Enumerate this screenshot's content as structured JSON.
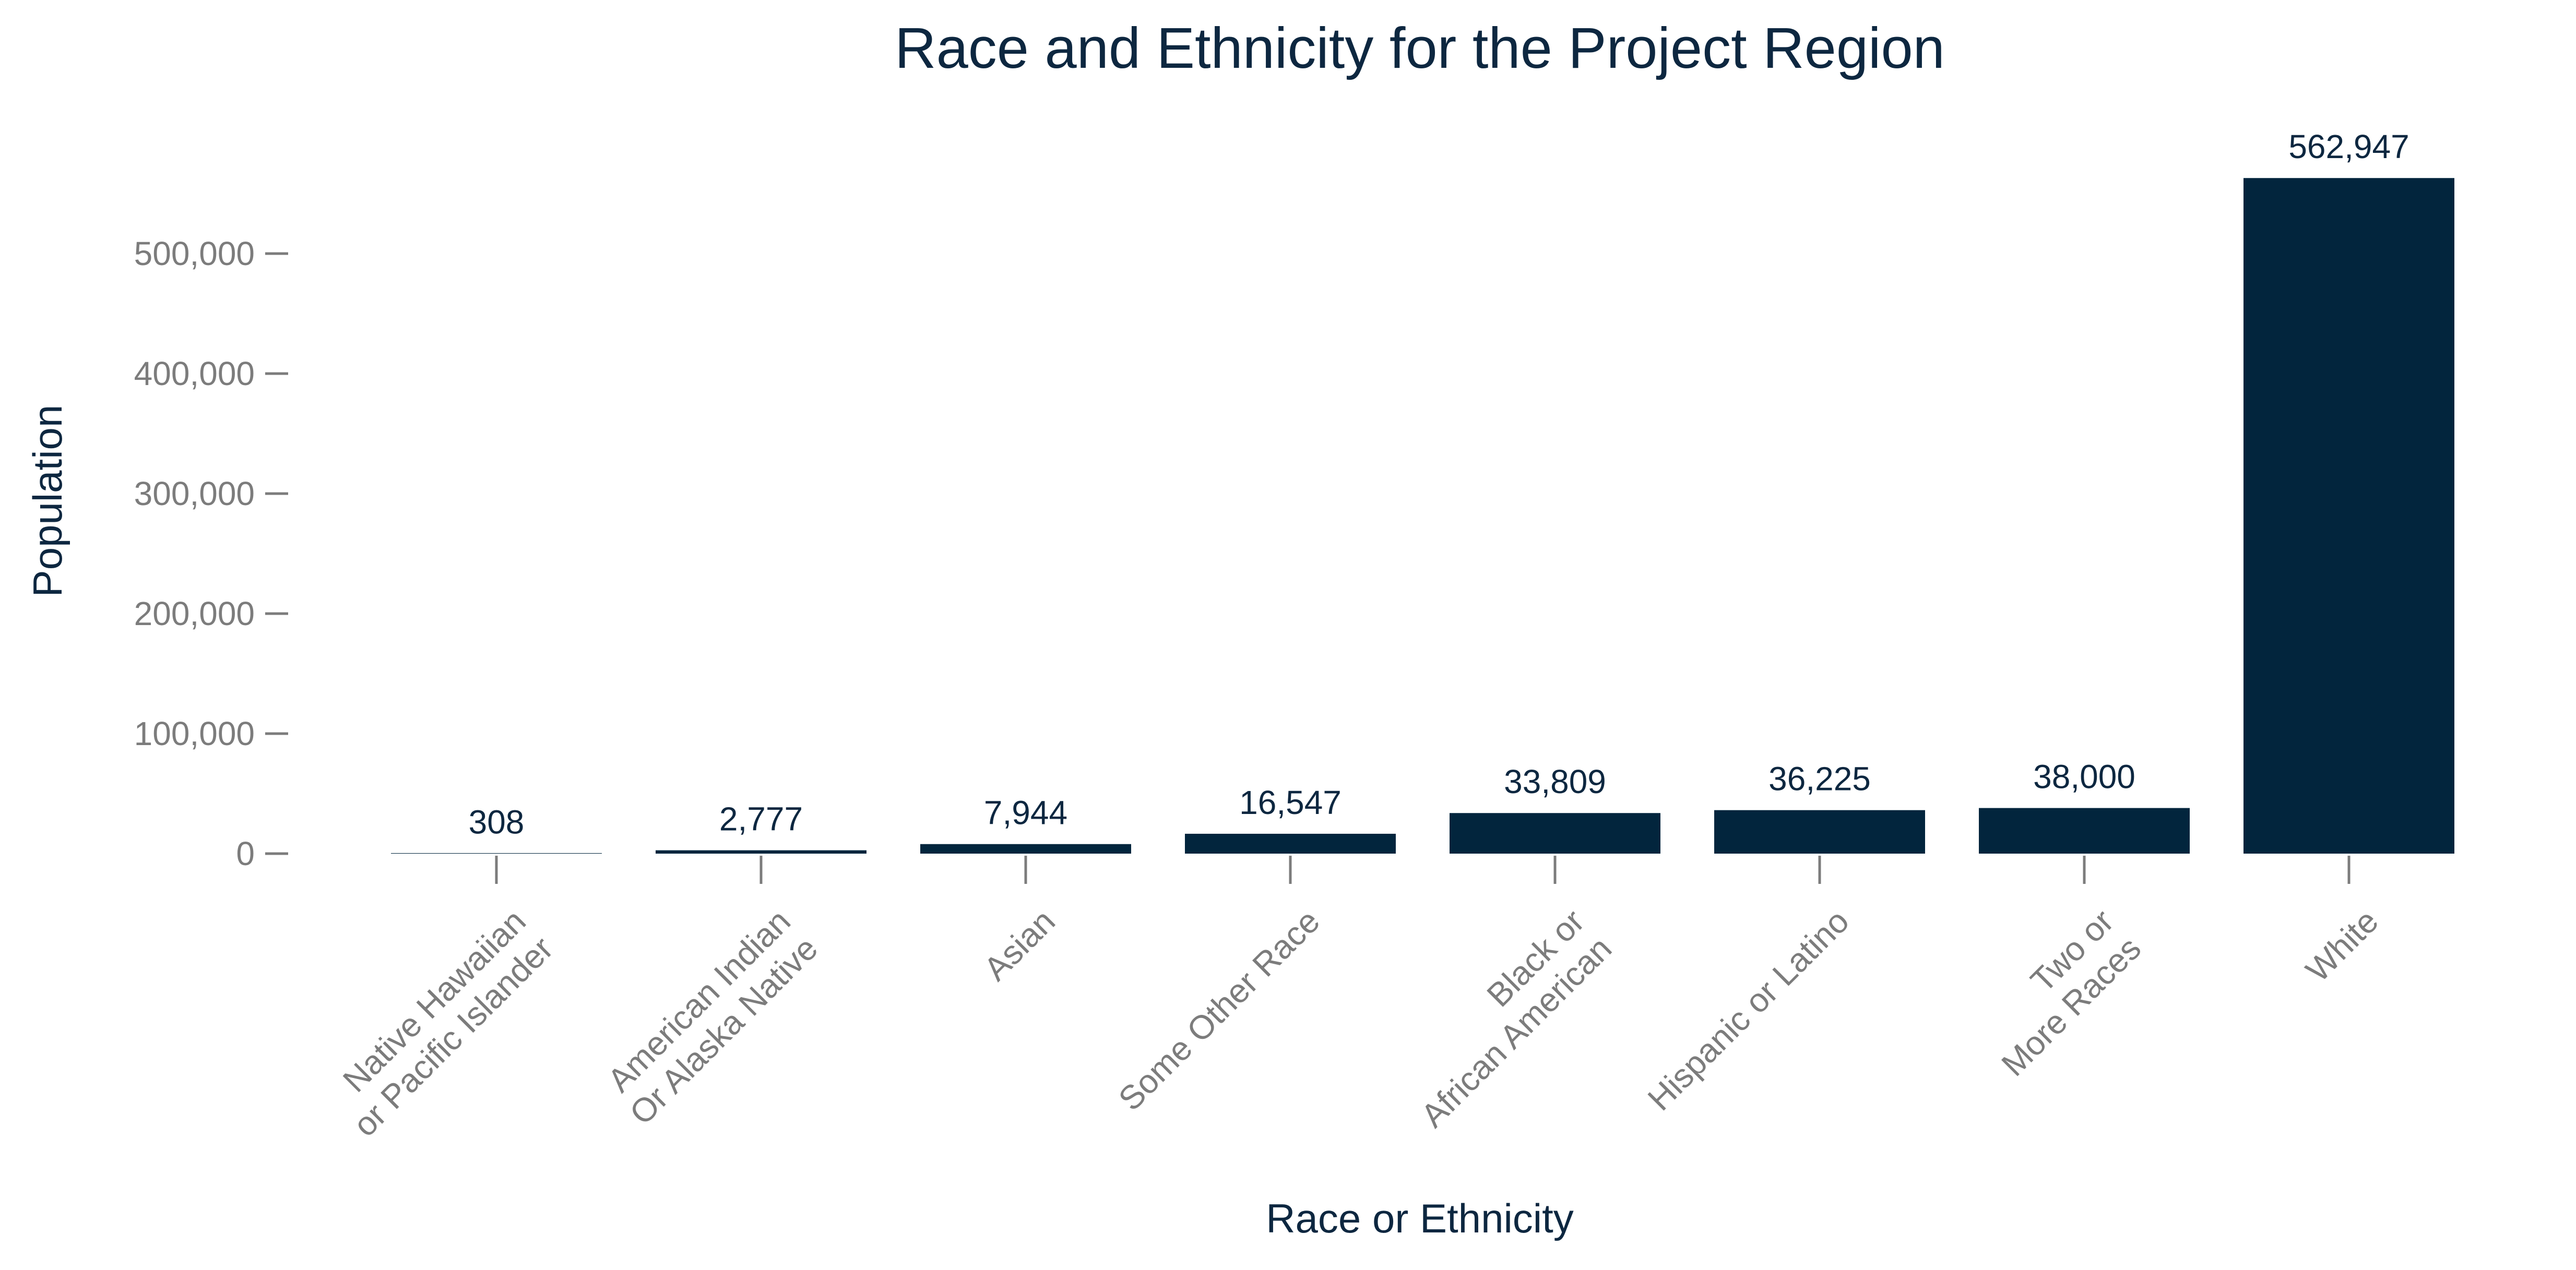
{
  "chart_data": {
    "type": "bar",
    "title": "Race and Ethnicity for the Project Region",
    "xlabel": "Race or Ethnicity",
    "ylabel": "Population",
    "categories": [
      [
        "Native Hawaiian",
        "or Pacific Islander"
      ],
      [
        "American Indian",
        "Or Alaska Native"
      ],
      [
        "Asian"
      ],
      [
        "Some Other Race"
      ],
      [
        "Black or",
        "African American"
      ],
      [
        "Hispanic or Latino"
      ],
      [
        "Two or",
        "More Races"
      ],
      [
        "White"
      ]
    ],
    "values": [
      308,
      2777,
      7944,
      16547,
      33809,
      36225,
      38000,
      562947
    ],
    "data_labels": [
      "308",
      "2,777",
      "7,944",
      "16,547",
      "33,809",
      "36,225",
      "38,000",
      "562,947"
    ],
    "yticks": [
      0,
      100000,
      200000,
      300000,
      400000,
      500000
    ],
    "ytick_labels": [
      "0",
      "100,000",
      "200,000",
      "300,000",
      "400,000",
      "500,000"
    ],
    "ylim": [
      0,
      600000
    ],
    "grid": false,
    "legend": "none",
    "bar_color": "#02253d"
  }
}
